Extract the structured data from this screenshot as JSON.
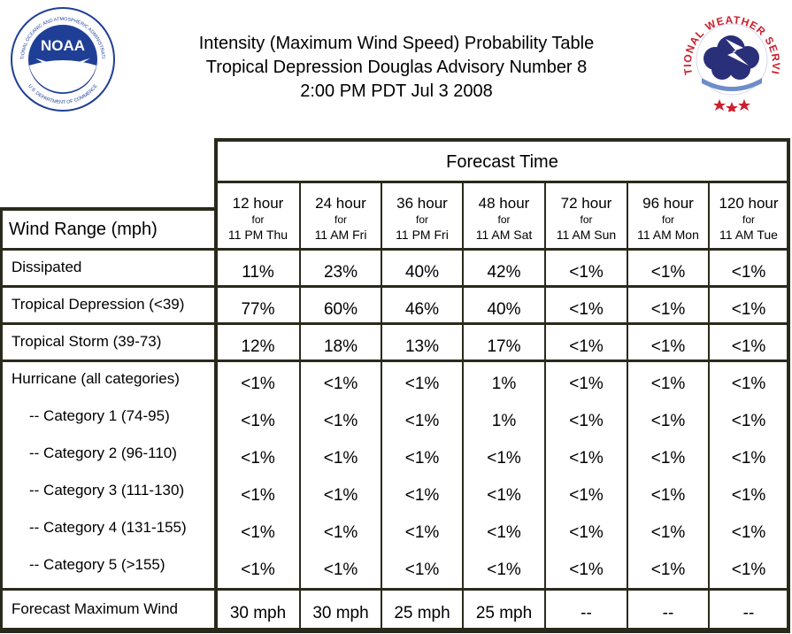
{
  "header": {
    "title_lines": [
      "Intensity (Maximum Wind Speed) Probability Table",
      "Tropical Depression Douglas Advisory Number 8",
      "2:00 PM PDT Jul 3 2008"
    ]
  },
  "logos": {
    "noaa": {
      "center_text": "NOAA",
      "ring_top": "NATIONAL OCEANIC AND ATMOSPHERIC ADMINISTRATION",
      "ring_bottom": "U.S. DEPARTMENT OF COMMERCE"
    },
    "nws": {
      "ring_text": "NATIONAL WEATHER SERVICE"
    }
  },
  "table": {
    "group_header": "Forecast Time",
    "row_header": "Wind Range (mph)",
    "columns": [
      {
        "hour": "12 hour",
        "for": "for",
        "when": "11 PM Thu"
      },
      {
        "hour": "24 hour",
        "for": "for",
        "when": "11 AM Fri"
      },
      {
        "hour": "36 hour",
        "for": "for",
        "when": "11 PM Fri"
      },
      {
        "hour": "48 hour",
        "for": "for",
        "when": "11 AM Sat"
      },
      {
        "hour": "72 hour",
        "for": "for",
        "when": "11 AM Sun"
      },
      {
        "hour": "96 hour",
        "for": "for",
        "when": "11 AM Mon"
      },
      {
        "hour": "120 hour",
        "for": "for",
        "when": "11 AM Tue"
      }
    ],
    "rows": [
      {
        "label": "Dissipated",
        "values": [
          "11%",
          "23%",
          "40%",
          "42%",
          "<1%",
          "<1%",
          "<1%"
        ]
      },
      {
        "label": "Tropical Depression (<39)",
        "values": [
          "77%",
          "60%",
          "46%",
          "40%",
          "<1%",
          "<1%",
          "<1%"
        ]
      },
      {
        "label": "Tropical Storm (39-73)",
        "values": [
          "12%",
          "18%",
          "13%",
          "17%",
          "<1%",
          "<1%",
          "<1%"
        ]
      },
      {
        "label": "Hurricane (all categories)",
        "values": [
          "<1%",
          "<1%",
          "<1%",
          "1%",
          "<1%",
          "<1%",
          "<1%"
        ]
      },
      {
        "label": "-- Category 1 (74-95)",
        "values": [
          "<1%",
          "<1%",
          "<1%",
          "1%",
          "<1%",
          "<1%",
          "<1%"
        ]
      },
      {
        "label": "-- Category 2 (96-110)",
        "values": [
          "<1%",
          "<1%",
          "<1%",
          "<1%",
          "<1%",
          "<1%",
          "<1%"
        ]
      },
      {
        "label": "-- Category 3 (111-130)",
        "values": [
          "<1%",
          "<1%",
          "<1%",
          "<1%",
          "<1%",
          "<1%",
          "<1%"
        ]
      },
      {
        "label": "-- Category 4 (131-155)",
        "values": [
          "<1%",
          "<1%",
          "<1%",
          "<1%",
          "<1%",
          "<1%",
          "<1%"
        ]
      },
      {
        "label": "-- Category 5 (>155)",
        "values": [
          "<1%",
          "<1%",
          "<1%",
          "<1%",
          "<1%",
          "<1%",
          "<1%"
        ]
      },
      {
        "label": "Forecast Maximum Wind",
        "values": [
          "30 mph",
          "30 mph",
          "25 mph",
          "25 mph",
          "--",
          "--",
          "--"
        ]
      }
    ]
  },
  "colors": {
    "border": "#2a2a1c",
    "noaa_blue": "#1f3f97",
    "nws_red": "#cc1f2f"
  }
}
